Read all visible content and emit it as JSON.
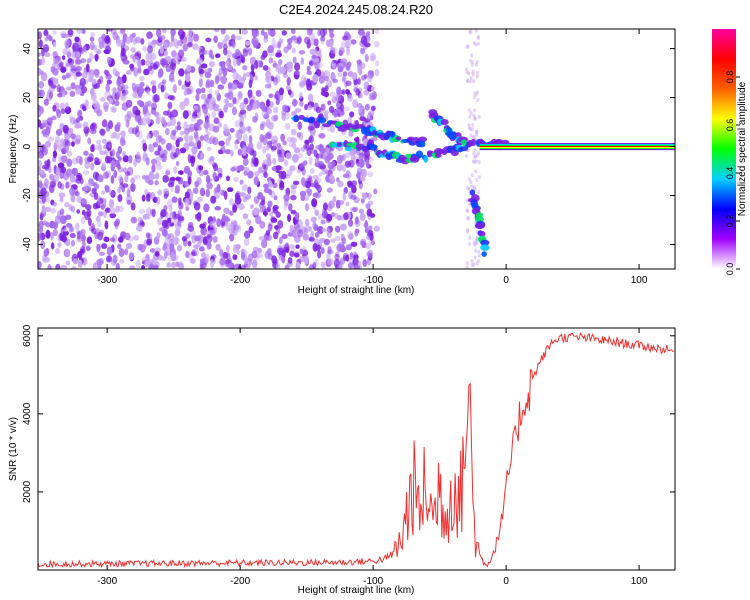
{
  "title": "C2E4.2024.245.08.24.R20",
  "colors": {
    "snr_line": "#f03030",
    "background": "#ffffff",
    "axes": "#000000",
    "scatter_light": "#c9a6f4",
    "scatter_dark": "#7a1fe0"
  },
  "chart_data": [
    {
      "type": "heatmap",
      "xlabel": "Height of straight line (km)",
      "ylabel": "Frequency (Hz)",
      "xlim": [
        -352,
        127
      ],
      "ylim": [
        -50,
        48
      ],
      "xticks": [
        -300,
        -200,
        -100,
        0,
        100
      ],
      "yticks": [
        -40,
        -20,
        0,
        20,
        40
      ],
      "colorbar": {
        "label": "Normalized spectral amplitude",
        "range": [
          0,
          1
        ],
        "ticks": [
          0.0,
          0.2,
          0.4,
          0.6,
          0.8
        ],
        "tick_labels": [
          "0.0",
          "0.2",
          "0.4",
          "0.6",
          "0.8"
        ],
        "colormap": [
          "#ffffff",
          "#a000ff",
          "#0000ff",
          "#00d0ff",
          "#00ff00",
          "#ffff00",
          "#ff6000",
          "#ff0000",
          "#ff00a0"
        ]
      },
      "noise_region": {
        "x_from": -352,
        "x_to": -97
      },
      "carrier": {
        "x_from": -20,
        "x_to": 127,
        "frequency": 0
      },
      "features": [
        {
          "name": "upper branch",
          "points": [
            [
              -160,
              12
            ],
            [
              -130,
              9
            ],
            [
              -105,
              7
            ],
            [
              -95,
              5
            ],
            [
              -80,
              3
            ],
            [
              -60,
              2
            ]
          ]
        },
        {
          "name": "lower branch",
          "points": [
            [
              -130,
              0
            ],
            [
              -110,
              0
            ],
            [
              -95,
              -2
            ],
            [
              -80,
              -5
            ],
            [
              -60,
              -4
            ],
            [
              -40,
              -2
            ],
            [
              -20,
              1
            ],
            [
              0,
              1
            ]
          ]
        },
        {
          "name": "rising streak",
          "points": [
            [
              -55,
              13
            ],
            [
              -45,
              8
            ],
            [
              -40,
              4
            ],
            [
              -30,
              2
            ]
          ]
        },
        {
          "name": "descending streak",
          "points": [
            [
              -25,
              -20
            ],
            [
              -20,
              -30
            ],
            [
              -15,
              -45
            ]
          ]
        }
      ]
    },
    {
      "type": "line",
      "xlabel": "Height of straight line (km)",
      "ylabel": "SNR (10 * v/v)",
      "xlim": [
        -352,
        127
      ],
      "ylim": [
        0,
        6200
      ],
      "xticks": [
        -300,
        -200,
        -100,
        0,
        100
      ],
      "yticks": [
        2000,
        4000,
        6000
      ],
      "series": [
        {
          "x": [
            -352,
            -300,
            -250,
            -200,
            -150,
            -120,
            -100,
            -90,
            -82,
            -78,
            -74,
            -70,
            -65,
            -60,
            -55,
            -50,
            -45,
            -40,
            -35,
            -30,
            -28,
            -26,
            -24,
            -22,
            -20,
            -17,
            -14,
            -11,
            -8,
            -5,
            -2,
            0,
            3,
            6,
            10,
            15,
            20,
            25,
            30,
            35,
            40,
            50,
            60,
            70,
            80,
            90,
            100,
            110,
            120,
            127
          ],
          "y": [
            150,
            160,
            170,
            180,
            190,
            200,
            230,
            300,
            500,
            900,
            1500,
            2200,
            1400,
            2300,
            1200,
            2200,
            1300,
            2400,
            1600,
            3600,
            4300,
            3000,
            1200,
            700,
            400,
            200,
            150,
            300,
            600,
            1000,
            1500,
            2100,
            2700,
            3200,
            3900,
            4400,
            4900,
            5300,
            5600,
            5850,
            5950,
            5970,
            5950,
            5900,
            5850,
            5800,
            5750,
            5700,
            5650,
            5600
          ]
        }
      ]
    }
  ]
}
